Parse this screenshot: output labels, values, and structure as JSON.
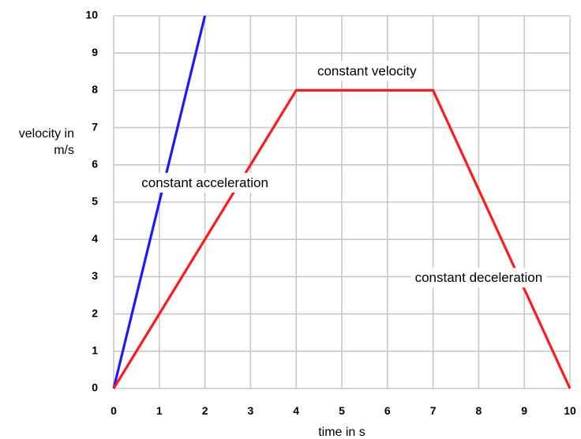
{
  "chart_data": {
    "type": "line",
    "title": "",
    "xlabel": "time in s",
    "ylabel_lines": [
      "velocity in",
      "m/s"
    ],
    "xlim": [
      0,
      10
    ],
    "ylim": [
      0,
      10
    ],
    "xticks": [
      "0",
      "1",
      "2",
      "3",
      "4",
      "5",
      "6",
      "7",
      "8",
      "9",
      "10"
    ],
    "yticks": [
      "0",
      "1",
      "2",
      "3",
      "4",
      "5",
      "6",
      "7",
      "8",
      "9",
      "10"
    ],
    "grid": true,
    "series": [
      {
        "color": "#1a1aff",
        "points": [
          [
            0,
            0
          ],
          [
            2,
            10
          ]
        ]
      },
      {
        "color": "#ff1a1a",
        "points": [
          [
            0,
            0
          ],
          [
            4,
            8
          ],
          [
            7,
            8
          ],
          [
            10,
            0
          ]
        ]
      }
    ],
    "annotations": [
      {
        "text": "constant velocity",
        "x": 5.55,
        "y": 8.5
      },
      {
        "text": "constant acceleration",
        "x": 2.0,
        "y": 5.5
      },
      {
        "text": "constant deceleration",
        "x": 8.0,
        "y": 2.95
      }
    ]
  }
}
